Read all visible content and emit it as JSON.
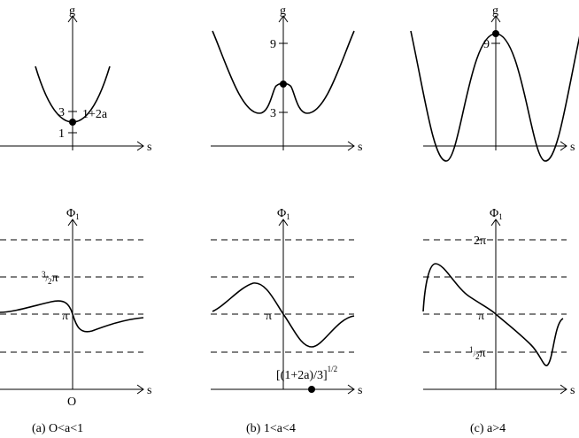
{
  "panels": {
    "a": {
      "caption": "(a) O<a<1",
      "g_axis": "g",
      "s_axis": "s",
      "g_ticks": [
        "3",
        "1"
      ],
      "g_point_label": "1+2a",
      "phi_axis": "Φ",
      "phi_sub": "1",
      "phi_ticks": [
        "3/2π",
        "π"
      ],
      "origin_label": "O"
    },
    "b": {
      "caption": "(b) 1<a<4",
      "g_axis": "g",
      "s_axis": "s",
      "g_ticks": [
        "9",
        "3"
      ],
      "phi_axis": "Φ",
      "phi_sub": "1",
      "phi_ticks": [
        "π"
      ],
      "root_label_main": "[(1+2a)/3]",
      "root_label_exp": "1/2"
    },
    "c": {
      "caption": "(c) a>4",
      "g_axis": "g",
      "s_axis": "s",
      "g_ticks": [
        "9"
      ],
      "phi_axis": "Φ",
      "phi_sub": "1",
      "phi_ticks": [
        "2π",
        "π",
        "1/2π"
      ]
    }
  }
}
